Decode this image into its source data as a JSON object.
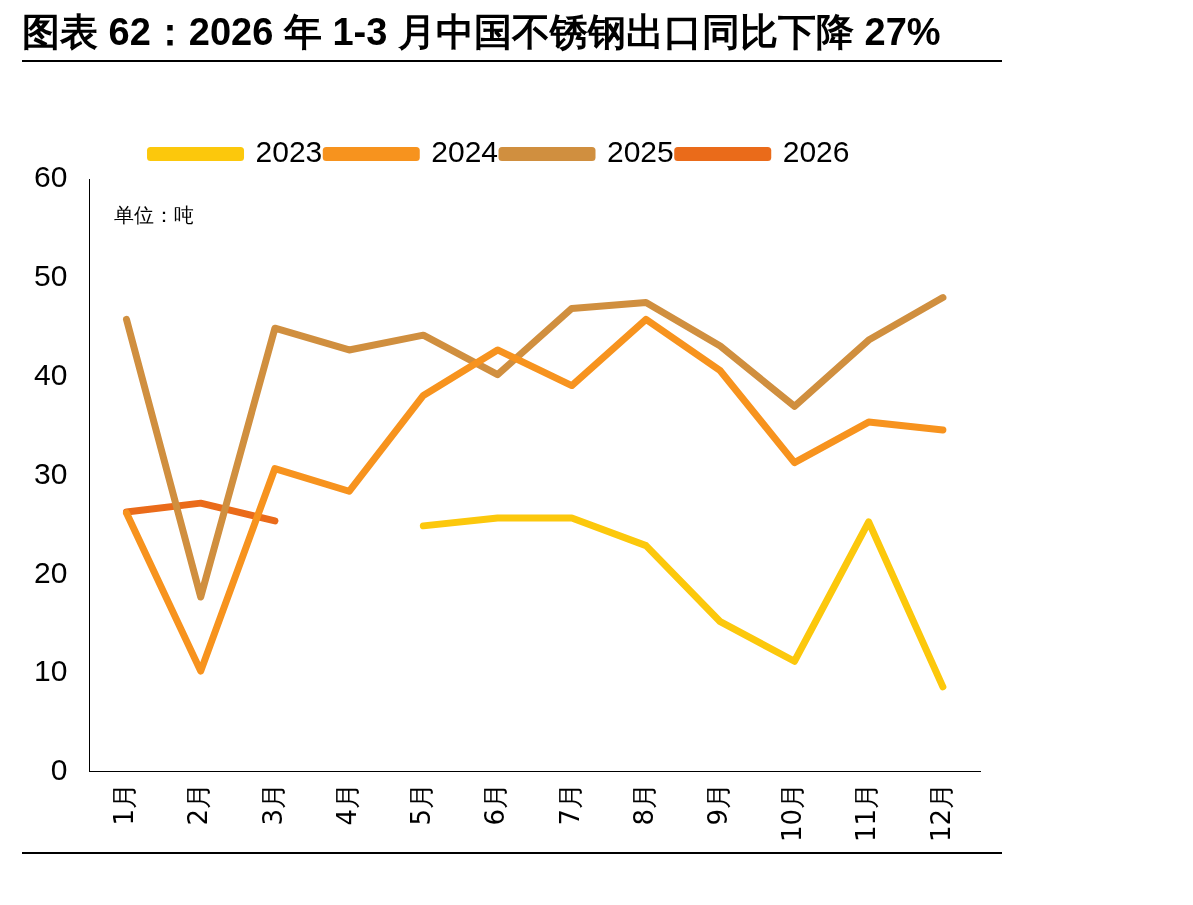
{
  "chart_data": {
    "type": "line",
    "title": "图表 62：2026 年 1-3 月中国不锈钢出口同比下降 27%",
    "categories": [
      "1月",
      "2月",
      "3月",
      "4月",
      "5月",
      "6月",
      "7月",
      "8月",
      "9月",
      "10月",
      "11月",
      "12月"
    ],
    "series": [
      {
        "name": "2023",
        "color": "#fcc80c",
        "values": [
          null,
          null,
          null,
          null,
          24.9,
          25.7,
          25.7,
          22.9,
          15.2,
          11.2,
          25.3,
          8.6
        ]
      },
      {
        "name": "2024",
        "color": "#f7931e",
        "values": [
          26.2,
          10.2,
          30.7,
          28.4,
          38.1,
          42.7,
          39.1,
          45.8,
          40.6,
          31.3,
          35.4,
          34.6
        ]
      },
      {
        "name": "2025",
        "color": "#d08f3f",
        "values": [
          45.8,
          17.7,
          44.9,
          42.7,
          44.2,
          40.2,
          46.9,
          47.5,
          43.1,
          37.0,
          43.7,
          48.0
        ]
      },
      {
        "name": "2026",
        "color": "#ea6b1a",
        "values": [
          26.3,
          27.2,
          25.4,
          null,
          null,
          null,
          null,
          null,
          null,
          null,
          null,
          null
        ]
      }
    ],
    "ylim": [
      0,
      60
    ],
    "yticks": [
      0,
      10,
      20,
      30,
      40,
      50,
      60
    ],
    "grid": false,
    "legend": "top",
    "marker": "none",
    "line_style": "solid",
    "annotations": [
      "单位：吨"
    ]
  }
}
